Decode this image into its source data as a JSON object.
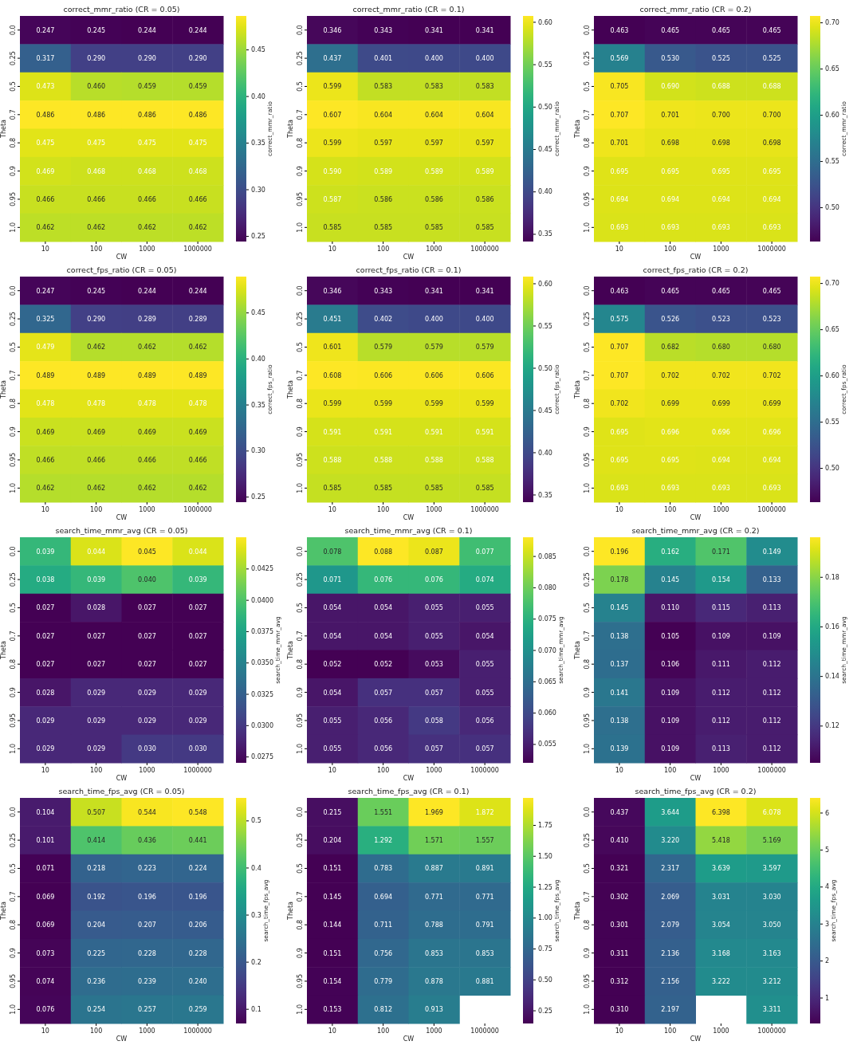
{
  "chart_data": [
    {
      "type": "heatmap",
      "title": "correct_mmr_ratio (CR = 0.05)",
      "xlabel": "CW",
      "ylabel": "Theta",
      "clabel": "correct_mmr_ratio",
      "categories": [
        "10",
        "100",
        "1000",
        "1000000"
      ],
      "y_categories": [
        "0.0",
        "0.25",
        "0.5",
        "0.7",
        "0.8",
        "0.9",
        "0.95",
        "1.0"
      ],
      "data_labels": true,
      "clim": [
        0.244,
        0.486
      ],
      "cticks": [
        {
          "value": 0.25,
          "label": "0.25"
        },
        {
          "value": 0.3,
          "label": "0.30"
        },
        {
          "value": 0.35,
          "label": "0.35"
        },
        {
          "value": 0.4,
          "label": "0.40"
        },
        {
          "value": 0.45,
          "label": "0.45"
        }
      ],
      "cell_labels": [
        [
          "0.247",
          "0.245",
          "0.244",
          "0.244"
        ],
        [
          "0.317",
          "0.290",
          "0.290",
          "0.290"
        ],
        [
          "0.473",
          "0.460",
          "0.459",
          "0.459"
        ],
        [
          "0.486",
          "0.486",
          "0.486",
          "0.486"
        ],
        [
          "0.475",
          "0.475",
          "0.475",
          "0.475"
        ],
        [
          "0.469",
          "0.468",
          "0.468",
          "0.468"
        ],
        [
          "0.466",
          "0.466",
          "0.466",
          "0.466"
        ],
        [
          "0.462",
          "0.462",
          "0.462",
          "0.462"
        ]
      ],
      "cells": [
        [
          0.247,
          0.245,
          0.244,
          0.244
        ],
        [
          0.317,
          0.29,
          0.29,
          0.29
        ],
        [
          0.473,
          0.46,
          0.459,
          0.459
        ],
        [
          0.486,
          0.486,
          0.486,
          0.486
        ],
        [
          0.475,
          0.475,
          0.475,
          0.475
        ],
        [
          0.469,
          0.468,
          0.468,
          0.468
        ],
        [
          0.466,
          0.466,
          0.466,
          0.466
        ],
        [
          0.462,
          0.462,
          0.462,
          0.462
        ]
      ]
    },
    {
      "type": "heatmap",
      "title": "correct_mmr_ratio (CR = 0.1)",
      "xlabel": "CW",
      "ylabel": "Theta",
      "clabel": "correct_mmr_ratio",
      "categories": [
        "10",
        "100",
        "1000",
        "1000000"
      ],
      "y_categories": [
        "0.0",
        "0.25",
        "0.5",
        "0.7",
        "0.8",
        "0.9",
        "0.95",
        "1.0"
      ],
      "data_labels": true,
      "clim": [
        0.341,
        0.607
      ],
      "cticks": [
        {
          "value": 0.35,
          "label": "0.35"
        },
        {
          "value": 0.4,
          "label": "0.40"
        },
        {
          "value": 0.45,
          "label": "0.45"
        },
        {
          "value": 0.5,
          "label": "0.50"
        },
        {
          "value": 0.55,
          "label": "0.55"
        },
        {
          "value": 0.6,
          "label": "0.60"
        }
      ],
      "cell_labels": [
        [
          "0.346",
          "0.343",
          "0.341",
          "0.341"
        ],
        [
          "0.437",
          "0.401",
          "0.400",
          "0.400"
        ],
        [
          "0.599",
          "0.583",
          "0.583",
          "0.583"
        ],
        [
          "0.607",
          "0.604",
          "0.604",
          "0.604"
        ],
        [
          "0.599",
          "0.597",
          "0.597",
          "0.597"
        ],
        [
          "0.590",
          "0.589",
          "0.589",
          "0.589"
        ],
        [
          "0.587",
          "0.586",
          "0.586",
          "0.586"
        ],
        [
          "0.585",
          "0.585",
          "0.585",
          "0.585"
        ]
      ],
      "cells": [
        [
          0.346,
          0.343,
          0.341,
          0.341
        ],
        [
          0.437,
          0.401,
          0.4,
          0.4
        ],
        [
          0.599,
          0.583,
          0.583,
          0.583
        ],
        [
          0.607,
          0.604,
          0.604,
          0.604
        ],
        [
          0.599,
          0.597,
          0.597,
          0.597
        ],
        [
          0.59,
          0.589,
          0.589,
          0.589
        ],
        [
          0.587,
          0.586,
          0.586,
          0.586
        ],
        [
          0.585,
          0.585,
          0.585,
          0.585
        ]
      ]
    },
    {
      "type": "heatmap",
      "title": "correct_mmr_ratio (CR = 0.2)",
      "xlabel": "CW",
      "ylabel": "Theta",
      "clabel": "correct_mmr_ratio",
      "categories": [
        "10",
        "100",
        "1000",
        "1000000"
      ],
      "y_categories": [
        "0.0",
        "0.25",
        "0.5",
        "0.7",
        "0.8",
        "0.9",
        "0.95",
        "1.0"
      ],
      "data_labels": true,
      "clim": [
        0.463,
        0.707
      ],
      "cticks": [
        {
          "value": 0.5,
          "label": "0.50"
        },
        {
          "value": 0.55,
          "label": "0.55"
        },
        {
          "value": 0.6,
          "label": "0.60"
        },
        {
          "value": 0.65,
          "label": "0.65"
        },
        {
          "value": 0.7,
          "label": "0.70"
        }
      ],
      "cell_labels": [
        [
          "0.463",
          "0.465",
          "0.465",
          "0.465"
        ],
        [
          "0.569",
          "0.530",
          "0.525",
          "0.525"
        ],
        [
          "0.705",
          "0.690",
          "0.688",
          "0.688"
        ],
        [
          "0.707",
          "0.701",
          "0.700",
          "0.700"
        ],
        [
          "0.701",
          "0.698",
          "0.698",
          "0.698"
        ],
        [
          "0.695",
          "0.695",
          "0.695",
          "0.695"
        ],
        [
          "0.694",
          "0.694",
          "0.694",
          "0.694"
        ],
        [
          "0.693",
          "0.693",
          "0.693",
          "0.693"
        ]
      ],
      "cells": [
        [
          0.463,
          0.465,
          0.465,
          0.465
        ],
        [
          0.569,
          0.53,
          0.525,
          0.525
        ],
        [
          0.705,
          0.69,
          0.688,
          0.688
        ],
        [
          0.707,
          0.701,
          0.7,
          0.7
        ],
        [
          0.701,
          0.698,
          0.698,
          0.698
        ],
        [
          0.695,
          0.695,
          0.695,
          0.695
        ],
        [
          0.694,
          0.694,
          0.694,
          0.694
        ],
        [
          0.693,
          0.693,
          0.693,
          0.693
        ]
      ]
    },
    {
      "type": "heatmap",
      "title": "correct_fps_ratio (CR = 0.05)",
      "xlabel": "CW",
      "ylabel": "Theta",
      "clabel": "correct_fps_ratio",
      "categories": [
        "10",
        "100",
        "1000",
        "1000000"
      ],
      "y_categories": [
        "0.0",
        "0.25",
        "0.5",
        "0.7",
        "0.8",
        "0.9",
        "0.95",
        "1.0"
      ],
      "data_labels": true,
      "clim": [
        0.244,
        0.489
      ],
      "cticks": [
        {
          "value": 0.25,
          "label": "0.25"
        },
        {
          "value": 0.3,
          "label": "0.30"
        },
        {
          "value": 0.35,
          "label": "0.35"
        },
        {
          "value": 0.4,
          "label": "0.40"
        },
        {
          "value": 0.45,
          "label": "0.45"
        }
      ],
      "cell_labels": [
        [
          "0.247",
          "0.245",
          "0.244",
          "0.244"
        ],
        [
          "0.325",
          "0.290",
          "0.289",
          "0.289"
        ],
        [
          "0.479",
          "0.462",
          "0.462",
          "0.462"
        ],
        [
          "0.489",
          "0.489",
          "0.489",
          "0.489"
        ],
        [
          "0.478",
          "0.478",
          "0.478",
          "0.478"
        ],
        [
          "0.469",
          "0.469",
          "0.469",
          "0.469"
        ],
        [
          "0.466",
          "0.466",
          "0.466",
          "0.466"
        ],
        [
          "0.462",
          "0.462",
          "0.462",
          "0.462"
        ]
      ],
      "cells": [
        [
          0.247,
          0.245,
          0.244,
          0.244
        ],
        [
          0.325,
          0.29,
          0.289,
          0.289
        ],
        [
          0.479,
          0.462,
          0.462,
          0.462
        ],
        [
          0.489,
          0.489,
          0.489,
          0.489
        ],
        [
          0.478,
          0.478,
          0.478,
          0.478
        ],
        [
          0.469,
          0.469,
          0.469,
          0.469
        ],
        [
          0.466,
          0.466,
          0.466,
          0.466
        ],
        [
          0.462,
          0.462,
          0.462,
          0.462
        ]
      ]
    },
    {
      "type": "heatmap",
      "title": "correct_fps_ratio (CR = 0.1)",
      "xlabel": "CW",
      "ylabel": "Theta",
      "clabel": "correct_fps_ratio",
      "categories": [
        "10",
        "100",
        "1000",
        "1000000"
      ],
      "y_categories": [
        "0.0",
        "0.25",
        "0.5",
        "0.7",
        "0.8",
        "0.9",
        "0.95",
        "1.0"
      ],
      "data_labels": true,
      "clim": [
        0.341,
        0.608
      ],
      "cticks": [
        {
          "value": 0.35,
          "label": "0.35"
        },
        {
          "value": 0.4,
          "label": "0.40"
        },
        {
          "value": 0.45,
          "label": "0.45"
        },
        {
          "value": 0.5,
          "label": "0.50"
        },
        {
          "value": 0.55,
          "label": "0.55"
        },
        {
          "value": 0.6,
          "label": "0.60"
        }
      ],
      "cell_labels": [
        [
          "0.346",
          "0.343",
          "0.341",
          "0.341"
        ],
        [
          "0.451",
          "0.402",
          "0.400",
          "0.400"
        ],
        [
          "0.601",
          "0.579",
          "0.579",
          "0.579"
        ],
        [
          "0.608",
          "0.606",
          "0.606",
          "0.606"
        ],
        [
          "0.599",
          "0.599",
          "0.599",
          "0.599"
        ],
        [
          "0.591",
          "0.591",
          "0.591",
          "0.591"
        ],
        [
          "0.588",
          "0.588",
          "0.588",
          "0.588"
        ],
        [
          "0.585",
          "0.585",
          "0.585",
          "0.585"
        ]
      ],
      "cells": [
        [
          0.346,
          0.343,
          0.341,
          0.341
        ],
        [
          0.451,
          0.402,
          0.4,
          0.4
        ],
        [
          0.601,
          0.579,
          0.579,
          0.579
        ],
        [
          0.608,
          0.606,
          0.606,
          0.606
        ],
        [
          0.599,
          0.599,
          0.599,
          0.599
        ],
        [
          0.591,
          0.591,
          0.591,
          0.591
        ],
        [
          0.588,
          0.588,
          0.588,
          0.588
        ],
        [
          0.585,
          0.585,
          0.585,
          0.585
        ]
      ]
    },
    {
      "type": "heatmap",
      "title": "correct_fps_ratio (CR = 0.2)",
      "xlabel": "CW",
      "ylabel": "Theta",
      "clabel": "correct_fps_ratio",
      "categories": [
        "10",
        "100",
        "1000",
        "1000000"
      ],
      "y_categories": [
        "0.0",
        "0.25",
        "0.5",
        "0.7",
        "0.8",
        "0.9",
        "0.95",
        "1.0"
      ],
      "data_labels": true,
      "clim": [
        0.463,
        0.707
      ],
      "cticks": [
        {
          "value": 0.5,
          "label": "0.50"
        },
        {
          "value": 0.55,
          "label": "0.55"
        },
        {
          "value": 0.6,
          "label": "0.60"
        },
        {
          "value": 0.65,
          "label": "0.65"
        },
        {
          "value": 0.7,
          "label": "0.70"
        }
      ],
      "cell_labels": [
        [
          "0.463",
          "0.465",
          "0.465",
          "0.465"
        ],
        [
          "0.575",
          "0.526",
          "0.523",
          "0.523"
        ],
        [
          "0.707",
          "0.682",
          "0.680",
          "0.680"
        ],
        [
          "0.707",
          "0.702",
          "0.702",
          "0.702"
        ],
        [
          "0.702",
          "0.699",
          "0.699",
          "0.699"
        ],
        [
          "0.695",
          "0.696",
          "0.696",
          "0.696"
        ],
        [
          "0.695",
          "0.695",
          "0.694",
          "0.694"
        ],
        [
          "0.693",
          "0.693",
          "0.693",
          "0.693"
        ]
      ],
      "cells": [
        [
          0.463,
          0.465,
          0.465,
          0.465
        ],
        [
          0.575,
          0.526,
          0.523,
          0.523
        ],
        [
          0.707,
          0.682,
          0.68,
          0.68
        ],
        [
          0.707,
          0.702,
          0.702,
          0.702
        ],
        [
          0.702,
          0.699,
          0.699,
          0.699
        ],
        [
          0.695,
          0.696,
          0.696,
          0.696
        ],
        [
          0.695,
          0.695,
          0.694,
          0.694
        ],
        [
          0.693,
          0.693,
          0.693,
          0.693
        ]
      ]
    },
    {
      "type": "heatmap",
      "title": "search_time_mmr_avg (CR = 0.05)",
      "xlabel": "CW",
      "ylabel": "Theta",
      "clabel": "search_time_mmr_avg",
      "categories": [
        "10",
        "100",
        "1000",
        "1000000"
      ],
      "y_categories": [
        "0.0",
        "0.25",
        "0.5",
        "0.7",
        "0.8",
        "0.9",
        "0.95",
        "1.0"
      ],
      "data_labels": true,
      "clim": [
        0.027,
        0.045
      ],
      "cticks": [
        0.0275,
        {
          "value": 0.03,
          "label": "0.0300"
        },
        0.0325,
        {
          "value": 0.035,
          "label": "0.0350"
        },
        0.0375,
        {
          "value": 0.04,
          "label": "0.0400"
        },
        0.0425
      ],
      "cell_labels": [
        [
          "0.039",
          "0.044",
          "0.045",
          "0.044"
        ],
        [
          "0.038",
          "0.039",
          "0.040",
          "0.039"
        ],
        [
          "0.027",
          "0.028",
          "0.027",
          "0.027"
        ],
        [
          "0.027",
          "0.027",
          "0.027",
          "0.027"
        ],
        [
          "0.027",
          "0.027",
          "0.027",
          "0.027"
        ],
        [
          "0.028",
          "0.029",
          "0.029",
          "0.029"
        ],
        [
          "0.029",
          "0.029",
          "0.029",
          "0.029"
        ],
        [
          "0.029",
          "0.029",
          "0.030",
          "0.030"
        ]
      ],
      "cells": [
        [
          0.039,
          0.044,
          0.045,
          0.044
        ],
        [
          0.038,
          0.039,
          0.04,
          0.039
        ],
        [
          0.027,
          0.028,
          0.027,
          0.027
        ],
        [
          0.027,
          0.027,
          0.027,
          0.027
        ],
        [
          0.027,
          0.027,
          0.027,
          0.027
        ],
        [
          0.028,
          0.029,
          0.029,
          0.029
        ],
        [
          0.029,
          0.029,
          0.029,
          0.029
        ],
        [
          0.029,
          0.029,
          0.03,
          0.03
        ]
      ]
    },
    {
      "type": "heatmap",
      "title": "search_time_mmr_avg (CR = 0.1)",
      "xlabel": "CW",
      "ylabel": "Theta",
      "clabel": "search_time_mmr_avg",
      "categories": [
        "10",
        "100",
        "1000",
        "1000000"
      ],
      "y_categories": [
        "0.0",
        "0.25",
        "0.5",
        "0.7",
        "0.8",
        "0.9",
        "0.95",
        "1.0"
      ],
      "data_labels": true,
      "clim": [
        0.052,
        0.088
      ],
      "cticks": [
        0.055,
        {
          "value": 0.06,
          "label": "0.060"
        },
        0.065,
        {
          "value": 0.07,
          "label": "0.070"
        },
        0.075,
        {
          "value": 0.08,
          "label": "0.080"
        },
        0.085
      ],
      "cells": [
        [
          0.078,
          0.088,
          0.087,
          0.077
        ],
        [
          0.071,
          0.076,
          0.076,
          0.074
        ],
        [
          0.054,
          0.054,
          0.055,
          0.055
        ],
        [
          0.054,
          0.054,
          0.055,
          0.054
        ],
        [
          0.052,
          0.052,
          0.053,
          0.055
        ],
        [
          0.054,
          0.057,
          0.057,
          0.055
        ],
        [
          0.055,
          0.056,
          0.058,
          0.056
        ],
        [
          0.055,
          0.056,
          0.057,
          0.057
        ]
      ]
    },
    {
      "type": "heatmap",
      "title": "search_time_mmr_avg (CR = 0.2)",
      "xlabel": "CW",
      "ylabel": "Theta",
      "clabel": "search_time_mmr_avg",
      "categories": [
        "10",
        "100",
        "1000",
        "1000000"
      ],
      "y_categories": [
        "0.0",
        "0.25",
        "0.5",
        "0.7",
        "0.8",
        "0.9",
        "0.95",
        "1.0"
      ],
      "data_labels": true,
      "clim": [
        0.105,
        0.196
      ],
      "cticks": [
        0.12,
        0.14,
        0.16,
        0.18
      ],
      "cell_labels": [
        [
          "0.196",
          "0.162",
          "0.171",
          "0.149"
        ],
        [
          "0.178",
          "0.145",
          "0.154",
          "0.133"
        ],
        [
          "0.145",
          "0.110",
          "0.115",
          "0.113"
        ],
        [
          "0.138",
          "0.105",
          "0.109",
          "0.109"
        ],
        [
          "0.137",
          "0.106",
          "0.111",
          "0.112"
        ],
        [
          "0.141",
          "0.109",
          "0.112",
          "0.112"
        ],
        [
          "0.138",
          "0.109",
          "0.112",
          "0.112"
        ],
        [
          "0.139",
          "0.109",
          "0.113",
          "0.112"
        ]
      ],
      "cells": [
        [
          0.196,
          0.162,
          0.171,
          0.149
        ],
        [
          0.178,
          0.145,
          0.154,
          0.133
        ],
        [
          0.145,
          0.11,
          0.115,
          0.113
        ],
        [
          0.138,
          0.105,
          0.109,
          0.109
        ],
        [
          0.137,
          0.106,
          0.111,
          0.112
        ],
        [
          0.141,
          0.109,
          0.112,
          0.112
        ],
        [
          0.138,
          0.109,
          0.112,
          0.112
        ],
        [
          0.139,
          0.109,
          0.113,
          0.112
        ]
      ]
    },
    {
      "type": "heatmap",
      "title": "search_time_fps_avg (CR = 0.05)",
      "xlabel": "CW",
      "ylabel": "Theta",
      "clabel": "search_time_fps_avg",
      "categories": [
        "10",
        "100",
        "1000",
        "1000000"
      ],
      "y_categories": [
        "0.0",
        "0.25",
        "0.5",
        "0.7",
        "0.8",
        "0.9",
        "0.95",
        "1.0"
      ],
      "data_labels": true,
      "clim": [
        0.069,
        0.548
      ],
      "cticks": [
        0.1,
        0.2,
        0.3,
        0.4,
        0.5
      ],
      "cell_labels": [
        [
          "0.104",
          "0.507",
          "0.544",
          "0.548"
        ],
        [
          "0.101",
          "0.414",
          "0.436",
          "0.441"
        ],
        [
          "0.071",
          "0.218",
          "0.223",
          "0.224"
        ],
        [
          "0.069",
          "0.192",
          "0.196",
          "0.196"
        ],
        [
          "0.069",
          "0.204",
          "0.207",
          "0.206"
        ],
        [
          "0.073",
          "0.225",
          "0.228",
          "0.228"
        ],
        [
          "0.074",
          "0.236",
          "0.239",
          "0.240"
        ],
        [
          "0.076",
          "0.254",
          "0.257",
          "0.259"
        ]
      ],
      "cells": [
        [
          0.104,
          0.507,
          0.544,
          0.548
        ],
        [
          0.101,
          0.414,
          0.436,
          0.441
        ],
        [
          0.071,
          0.218,
          0.223,
          0.224
        ],
        [
          0.069,
          0.192,
          0.196,
          0.196
        ],
        [
          0.069,
          0.204,
          0.207,
          0.206
        ],
        [
          0.073,
          0.225,
          0.228,
          0.228
        ],
        [
          0.074,
          0.236,
          0.239,
          0.24
        ],
        [
          0.076,
          0.254,
          0.257,
          0.259
        ]
      ]
    },
    {
      "type": "heatmap",
      "title": "search_time_fps_avg (CR = 0.1)",
      "xlabel": "CW",
      "ylabel": "Theta",
      "clabel": "search_time_fps_avg",
      "categories": [
        "10",
        "100",
        "1000",
        "1000000"
      ],
      "y_categories": [
        "0.0",
        "0.25",
        "0.5",
        "0.7",
        "0.8",
        "0.9",
        "0.95",
        "1.0"
      ],
      "data_labels": true,
      "clim": [
        0.144,
        1.969
      ],
      "cticks": [
        0.25,
        {
          "value": 0.5,
          "label": "0.50"
        },
        0.75,
        {
          "value": 1,
          "label": "1.00"
        },
        1.25,
        {
          "value": 1.5,
          "label": "1.50"
        },
        1.75
      ],
      "cells": [
        [
          0.215,
          1.551,
          1.969,
          1.872
        ],
        [
          0.204,
          1.292,
          1.571,
          1.557
        ],
        [
          0.151,
          0.783,
          0.887,
          0.891
        ],
        [
          0.145,
          0.694,
          0.771,
          0.771
        ],
        [
          0.144,
          0.711,
          0.788,
          0.791
        ],
        [
          0.151,
          0.756,
          0.853,
          0.853
        ],
        [
          0.154,
          0.779,
          0.878,
          0.881
        ],
        [
          0.153,
          0.812,
          0.913,
          null
        ]
      ]
    },
    {
      "type": "heatmap",
      "title": "search_time_fps_avg (CR = 0.2)",
      "xlabel": "CW",
      "ylabel": "Theta",
      "clabel": "search_time_fps_avg",
      "categories": [
        "10",
        "100",
        "1000",
        "1000000"
      ],
      "y_categories": [
        "0.0",
        "0.25",
        "0.5",
        "0.7",
        "0.8",
        "0.9",
        "0.95",
        "1.0"
      ],
      "data_labels": true,
      "clim": [
        0.301,
        6.398
      ],
      "cticks": [
        1,
        2,
        3,
        4,
        5,
        6
      ],
      "cell_labels": [
        [
          "0.437",
          "3.644",
          "6.398",
          "6.078"
        ],
        [
          "0.410",
          "3.220",
          "5.418",
          "5.169"
        ],
        [
          "0.321",
          "2.317",
          "3.639",
          "3.597"
        ],
        [
          "0.302",
          "2.069",
          "3.031",
          "3.030"
        ],
        [
          "0.301",
          "2.079",
          "3.054",
          "3.050"
        ],
        [
          "0.311",
          "2.136",
          "3.168",
          "3.163"
        ],
        [
          "0.312",
          "2.156",
          "3.222",
          "3.212"
        ],
        [
          "0.310",
          "2.197",
          null,
          "3.311"
        ]
      ],
      "cells": [
        [
          0.437,
          3.644,
          6.398,
          6.078
        ],
        [
          0.41,
          3.22,
          5.418,
          5.169
        ],
        [
          0.321,
          2.317,
          3.639,
          3.597
        ],
        [
          0.302,
          2.069,
          3.031,
          3.03
        ],
        [
          0.301,
          2.079,
          3.054,
          3.05
        ],
        [
          0.311,
          2.136,
          3.168,
          3.163
        ],
        [
          0.312,
          2.156,
          3.222,
          3.212
        ],
        [
          0.31,
          2.197,
          null,
          3.311
        ]
      ]
    }
  ]
}
